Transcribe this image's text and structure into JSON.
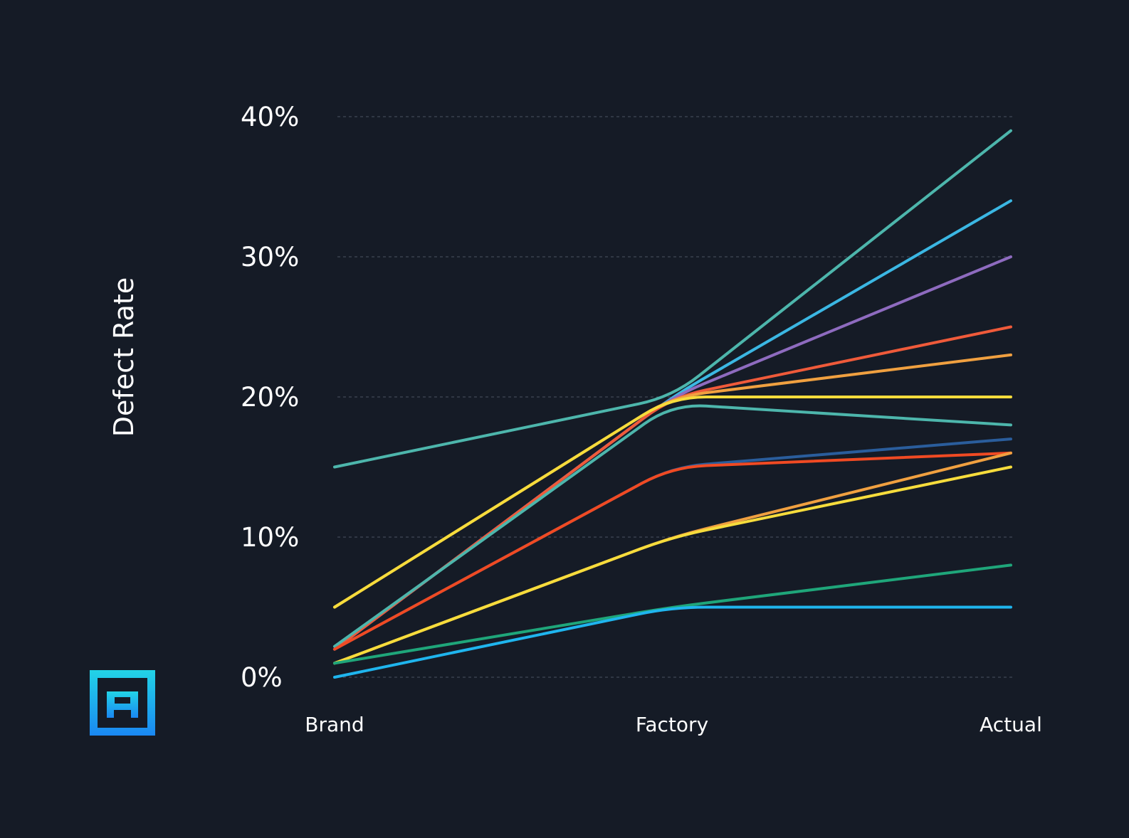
{
  "chart_data": {
    "type": "line",
    "title": "",
    "xlabel": "",
    "ylabel": "Defect Rate",
    "categories": [
      "Brand",
      "Factory",
      "Actual"
    ],
    "ylim": [
      0,
      40
    ],
    "yticks": [
      0,
      10,
      20,
      30,
      40
    ],
    "ytick_suffix": "%",
    "grid": true,
    "legend": "none",
    "series": [
      {
        "values": [
          15,
          20,
          39
        ],
        "color": "#4db6ac"
      },
      {
        "values": [
          2,
          20,
          34
        ],
        "color": "#3bb7e3"
      },
      {
        "values": [
          2,
          20,
          30
        ],
        "color": "#8e6bbf"
      },
      {
        "values": [
          2,
          20,
          25
        ],
        "color": "#ef5a3a"
      },
      {
        "values": [
          5,
          20,
          23
        ],
        "color": "#f0a040"
      },
      {
        "values": [
          5,
          20,
          20
        ],
        "color": "#f6dc3c"
      },
      {
        "values": [
          2.2,
          19.5,
          18
        ],
        "color": "#4db6ac"
      },
      {
        "values": [
          2,
          15,
          17
        ],
        "color": "#2a5d9c"
      },
      {
        "values": [
          2,
          15,
          16
        ],
        "color": "#f04a23"
      },
      {
        "values": [
          1,
          10,
          16
        ],
        "color": "#f0a040"
      },
      {
        "values": [
          1,
          10,
          15
        ],
        "color": "#f6dc3c"
      },
      {
        "values": [
          1,
          5,
          8
        ],
        "color": "#1fa67a"
      },
      {
        "values": [
          0,
          5,
          5
        ],
        "color": "#1fb5ee"
      }
    ]
  },
  "logo": {
    "name": "logo-icon",
    "color_top": "#22d3e6",
    "color_bottom": "#1a88f2"
  }
}
